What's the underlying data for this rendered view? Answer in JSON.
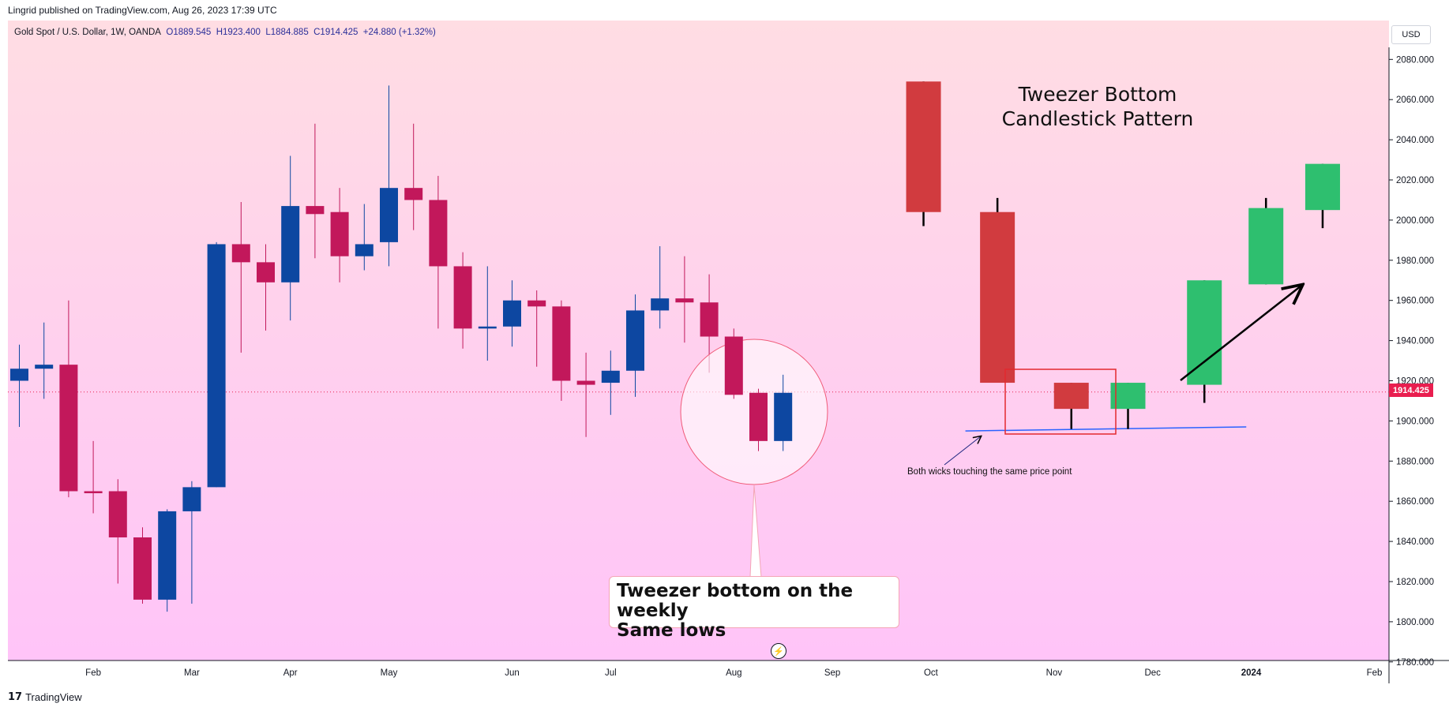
{
  "header": {
    "publisher": "Lingrid published on TradingView.com, Aug 26, 2023 17:39 UTC"
  },
  "legend": {
    "symbol": "Gold Spot / U.S. Dollar, 1W, OANDA",
    "open": "O1889.545",
    "high": "H1923.400",
    "low": "L1884.885",
    "close": "C1914.425",
    "change": "+24.880 (+1.32%)"
  },
  "currency_button": "USD",
  "last_price_label": "1914.425",
  "footer": {
    "logo": "𝟭𝟳",
    "brand": "TradingView"
  },
  "annotations": {
    "callout_line1": "Tweezer bottom on the weekly",
    "callout_line2": "Same lows",
    "pattern_title_line1": "Tweezer Bottom",
    "pattern_title_line2": "Candlestick Pattern",
    "wick_note": "Both wicks touching the same price point"
  },
  "colors": {
    "bull": "#0d47a1",
    "bear": "#c2185b",
    "bg_top": "#ffdde3",
    "bg_bottom": "#ffc4f8",
    "schema_bear": "#d13b3f",
    "schema_bull": "#2ebf6f",
    "last_price": "#e91e4f"
  },
  "chart_data": {
    "type": "candlestick",
    "timeframe": "1W",
    "ylim": [
      1775,
      2090
    ],
    "yticks": [
      1780,
      1800,
      1820,
      1840,
      1860,
      1880,
      1900,
      1920,
      1940,
      1960,
      1980,
      2000,
      2020,
      2040,
      2060,
      2080
    ],
    "ytick_labels": [
      "1780.000",
      "1800.000",
      "1820.000",
      "1840.000",
      "1860.000",
      "1880.000",
      "1900.000",
      "1920.000",
      "1940.000",
      "1960.000",
      "1980.000",
      "2000.000",
      "2020.000",
      "2040.000",
      "2060.000",
      "2080.000"
    ],
    "last_price": 1914.425,
    "xtick_labels": [
      {
        "label": "Feb",
        "bar": 3
      },
      {
        "label": "Mar",
        "bar": 7
      },
      {
        "label": "Apr",
        "bar": 11
      },
      {
        "label": "May",
        "bar": 15
      },
      {
        "label": "Jun",
        "bar": 20
      },
      {
        "label": "Jul",
        "bar": 24
      },
      {
        "label": "Aug",
        "bar": 29
      },
      {
        "label": "Sep",
        "bar": 33
      },
      {
        "label": "Oct",
        "bar": 37
      },
      {
        "label": "Nov",
        "bar": 42
      },
      {
        "label": "Dec",
        "bar": 46
      },
      {
        "label": "2024",
        "bar": 50
      },
      {
        "label": "Feb",
        "bar": 55
      }
    ],
    "series": [
      {
        "o": 1920,
        "h": 1938,
        "l": 1897,
        "c": 1926
      },
      {
        "o": 1926,
        "h": 1949,
        "l": 1911,
        "c": 1928
      },
      {
        "o": 1928,
        "h": 1960,
        "l": 1862,
        "c": 1865
      },
      {
        "o": 1865,
        "h": 1890,
        "l": 1854,
        "c": 1864
      },
      {
        "o": 1865,
        "h": 1871,
        "l": 1819,
        "c": 1842
      },
      {
        "o": 1842,
        "h": 1847,
        "l": 1809,
        "c": 1811
      },
      {
        "o": 1811,
        "h": 1856,
        "l": 1805,
        "c": 1855
      },
      {
        "o": 1855,
        "h": 1870,
        "l": 1809,
        "c": 1867
      },
      {
        "o": 1867,
        "h": 1989,
        "l": 1867,
        "c": 1988
      },
      {
        "o": 1988,
        "h": 2009,
        "l": 1934,
        "c": 1979
      },
      {
        "o": 1979,
        "h": 1988,
        "l": 1945,
        "c": 1969
      },
      {
        "o": 1969,
        "h": 2032,
        "l": 1950,
        "c": 2007
      },
      {
        "o": 2007,
        "h": 2048,
        "l": 1981,
        "c": 2003
      },
      {
        "o": 2004,
        "h": 2016,
        "l": 1969,
        "c": 1982
      },
      {
        "o": 1982,
        "h": 2008,
        "l": 1975,
        "c": 1988
      },
      {
        "o": 1989,
        "h": 2067,
        "l": 1977,
        "c": 2016
      },
      {
        "o": 2016,
        "h": 2048,
        "l": 1995,
        "c": 2010
      },
      {
        "o": 2010,
        "h": 2022,
        "l": 1946,
        "c": 1977
      },
      {
        "o": 1977,
        "h": 1984,
        "l": 1936,
        "c": 1946
      },
      {
        "o": 1946,
        "h": 1977,
        "l": 1930,
        "c": 1947
      },
      {
        "o": 1947,
        "h": 1970,
        "l": 1937,
        "c": 1960
      },
      {
        "o": 1960,
        "h": 1965,
        "l": 1927,
        "c": 1957
      },
      {
        "o": 1957,
        "h": 1960,
        "l": 1910,
        "c": 1920
      },
      {
        "o": 1920,
        "h": 1934,
        "l": 1892,
        "c": 1918
      },
      {
        "o": 1919,
        "h": 1935,
        "l": 1903,
        "c": 1925
      },
      {
        "o": 1925,
        "h": 1963,
        "l": 1912,
        "c": 1955
      },
      {
        "o": 1955,
        "h": 1987,
        "l": 1946,
        "c": 1961
      },
      {
        "o": 1961,
        "h": 1982,
        "l": 1939,
        "c": 1959
      },
      {
        "o": 1959,
        "h": 1973,
        "l": 1924,
        "c": 1942
      },
      {
        "o": 1942,
        "h": 1946,
        "l": 1911,
        "c": 1913
      },
      {
        "o": 1914,
        "h": 1916,
        "l": 1885,
        "c": 1890
      },
      {
        "o": 1890,
        "h": 1923,
        "l": 1885,
        "c": 1914
      }
    ],
    "schematic": {
      "type": "illustration",
      "candles": [
        {
          "bar": 36.7,
          "o": 2069,
          "c": 2004,
          "h": 2069,
          "l": 1997,
          "dir": "bear"
        },
        {
          "bar": 39.7,
          "o": 2004,
          "c": 1919,
          "h": 2011,
          "l": 1919,
          "dir": "bear"
        },
        {
          "bar": 42.7,
          "o": 1919,
          "c": 1906,
          "h": 1919,
          "l": 1896,
          "dir": "bear"
        },
        {
          "bar": 45.0,
          "o": 1906,
          "c": 1919,
          "h": 1919,
          "l": 1896,
          "dir": "bull"
        },
        {
          "bar": 48.1,
          "o": 1918,
          "c": 1970,
          "h": 1970,
          "l": 1909,
          "dir": "bull"
        },
        {
          "bar": 50.6,
          "o": 1968,
          "c": 2006,
          "h": 2011,
          "l": 1968,
          "dir": "bull"
        },
        {
          "bar": 52.9,
          "o": 2005,
          "c": 2028,
          "h": 2028,
          "l": 1996,
          "dir": "bull"
        }
      ],
      "support_line": [
        {
          "bar": 38.4,
          "price": 1895
        },
        {
          "bar": 49.8,
          "price": 1897
        }
      ]
    }
  }
}
